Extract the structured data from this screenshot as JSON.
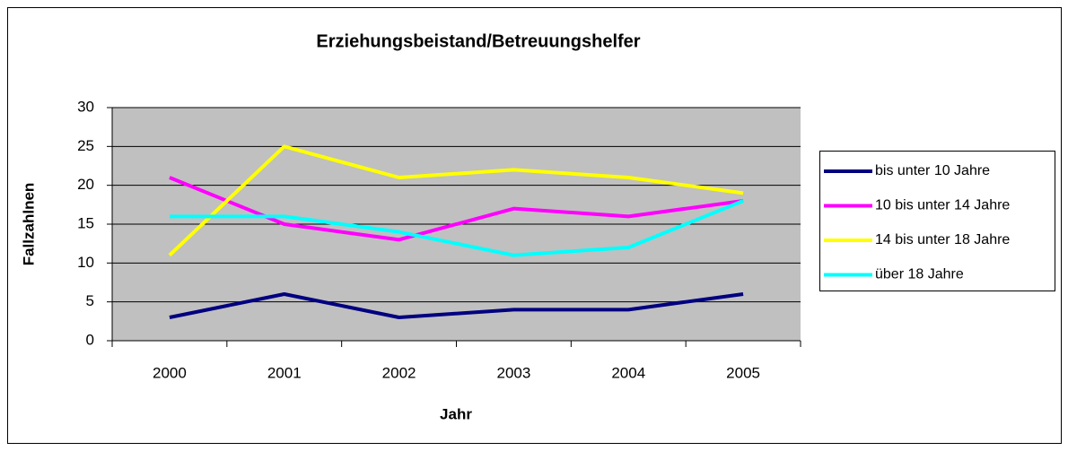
{
  "chart_data": {
    "type": "line",
    "title": "Erziehungsbeistand/Betreuungshelfer",
    "x_label": "Jahr",
    "y_label": "Fallzahlnen",
    "categories": [
      "2000",
      "2001",
      "2002",
      "2003",
      "2004",
      "2005"
    ],
    "series": [
      {
        "name": "bis unter 10 Jahre",
        "color": "#000080",
        "values": [
          3,
          6,
          3,
          4,
          4,
          6
        ]
      },
      {
        "name": "10 bis unter 14 Jahre",
        "color": "#ff00ff",
        "values": [
          21,
          15,
          13,
          17,
          16,
          18
        ]
      },
      {
        "name": "14 bis unter 18 Jahre",
        "color": "#ffff00",
        "values": [
          11,
          25,
          21,
          22,
          21,
          19
        ]
      },
      {
        "name": "über 18 Jahre",
        "color": "#00ffff",
        "values": [
          16,
          16,
          14,
          11,
          12,
          18
        ]
      }
    ],
    "ylim": [
      0,
      30
    ],
    "yticks": [
      0,
      5,
      10,
      15,
      20,
      25,
      30
    ],
    "grid": true,
    "legend": "right"
  }
}
